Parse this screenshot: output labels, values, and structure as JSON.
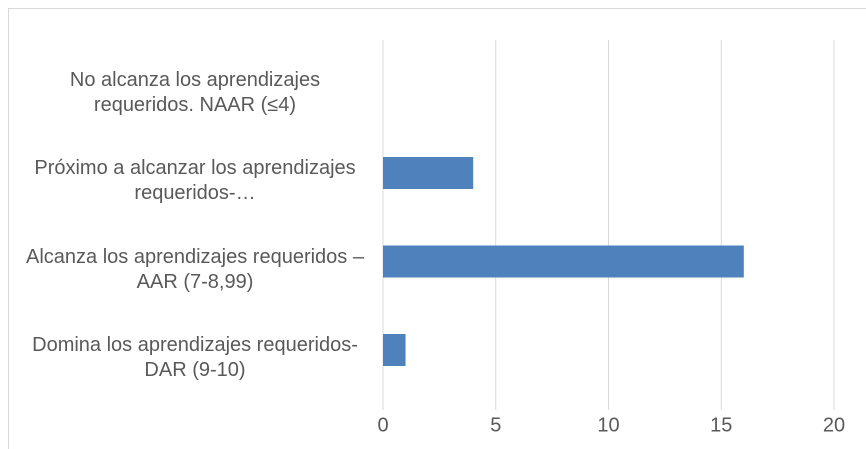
{
  "chart_data": {
    "type": "bar",
    "orientation": "horizontal",
    "categories": [
      "No alcanza los aprendizajes requeridos. NAAR (≤4)",
      "Próximo a alcanzar los aprendizajes requeridos-…",
      "Alcanza los aprendizajes requeridos – AAR (7-8,99)",
      "Domina los aprendizajes requeridos- DAR (9-10)"
    ],
    "values": [
      0,
      4,
      16,
      1
    ],
    "color": "#4f81bd",
    "xlim": [
      0,
      20
    ],
    "xticks": [
      0,
      5,
      10,
      15,
      20
    ],
    "grid": true
  }
}
